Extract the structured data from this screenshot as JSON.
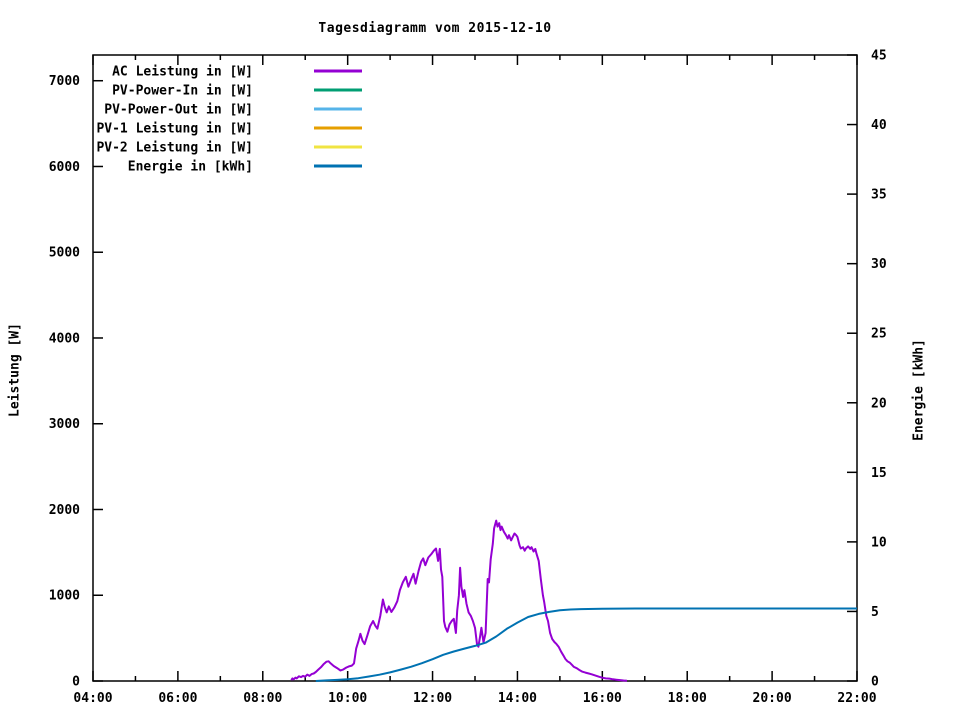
{
  "title": "Tagesdiagramm vom 2015-12-10",
  "axes": {
    "x": {
      "major_ticks": [
        {
          "label": "04:00",
          "hour": 4
        },
        {
          "label": "06:00",
          "hour": 6
        },
        {
          "label": "08:00",
          "hour": 8
        },
        {
          "label": "10:00",
          "hour": 10
        },
        {
          "label": "12:00",
          "hour": 12
        },
        {
          "label": "14:00",
          "hour": 14
        },
        {
          "label": "16:00",
          "hour": 16
        },
        {
          "label": "18:00",
          "hour": 18
        },
        {
          "label": "20:00",
          "hour": 20
        },
        {
          "label": "22:00",
          "hour": 22
        }
      ],
      "minor_tick_hours": [
        5,
        7,
        9,
        11,
        13,
        15,
        17,
        19,
        21
      ]
    },
    "y_left": {
      "label": "Leistung [W]",
      "ticks": [
        {
          "label": "0",
          "value": 0
        },
        {
          "label": "1000",
          "value": 1000
        },
        {
          "label": "2000",
          "value": 2000
        },
        {
          "label": "3000",
          "value": 3000
        },
        {
          "label": "4000",
          "value": 4000
        },
        {
          "label": "5000",
          "value": 5000
        },
        {
          "label": "6000",
          "value": 6000
        },
        {
          "label": "7000",
          "value": 7000
        }
      ]
    },
    "y_right": {
      "label": "Energie [kWh]",
      "ticks": [
        {
          "label": "0",
          "value": 0
        },
        {
          "label": "5",
          "value": 5
        },
        {
          "label": "10",
          "value": 10
        },
        {
          "label": "15",
          "value": 15
        },
        {
          "label": "20",
          "value": 20
        },
        {
          "label": "25",
          "value": 25
        },
        {
          "label": "30",
          "value": 30
        },
        {
          "label": "35",
          "value": 35
        },
        {
          "label": "40",
          "value": 40
        },
        {
          "label": "45",
          "value": 45
        }
      ]
    }
  },
  "legend": [
    {
      "label": "AC Leistung in [W]",
      "color": "#9400d3"
    },
    {
      "label": "PV-Power-In in [W]",
      "color": "#009e73"
    },
    {
      "label": "PV-Power-Out in [W]",
      "color": "#56b4e9"
    },
    {
      "label": "PV-1 Leistung in [W]",
      "color": "#e69f00"
    },
    {
      "label": "PV-2 Leistung in [W]",
      "color": "#f0e442"
    },
    {
      "label": "Energie in [kWh]",
      "color": "#0072b2"
    }
  ],
  "chart_data": {
    "type": "line",
    "title": "Tagesdiagramm vom 2015-12-10",
    "xlabel": "",
    "x_axis": "time of day (HH:MM)",
    "x_range": [
      4,
      22
    ],
    "ylabel_left": "Leistung [W]",
    "y_left_range": [
      0,
      7300
    ],
    "ylabel_right": "Energie [kWh]",
    "y_right_range": [
      0,
      45
    ],
    "grid": false,
    "legend_position": "inside top-left",
    "series": [
      {
        "name": "AC Leistung in [W]",
        "color": "#9400d3",
        "axis": "left",
        "points": [
          [
            8.67,
            10
          ],
          [
            8.7,
            30
          ],
          [
            8.73,
            20
          ],
          [
            8.77,
            40
          ],
          [
            8.8,
            30
          ],
          [
            8.85,
            55
          ],
          [
            8.9,
            45
          ],
          [
            8.95,
            60
          ],
          [
            9.0,
            50
          ],
          [
            9.05,
            75
          ],
          [
            9.1,
            60
          ],
          [
            9.15,
            80
          ],
          [
            9.2,
            88
          ],
          [
            9.25,
            105
          ],
          [
            9.3,
            130
          ],
          [
            9.37,
            160
          ],
          [
            9.43,
            195
          ],
          [
            9.5,
            225
          ],
          [
            9.55,
            230
          ],
          [
            9.6,
            205
          ],
          [
            9.67,
            175
          ],
          [
            9.75,
            150
          ],
          [
            9.83,
            122
          ],
          [
            9.9,
            135
          ],
          [
            9.97,
            158
          ],
          [
            10.03,
            170
          ],
          [
            10.1,
            180
          ],
          [
            10.15,
            205
          ],
          [
            10.2,
            380
          ],
          [
            10.25,
            460
          ],
          [
            10.3,
            550
          ],
          [
            10.35,
            470
          ],
          [
            10.4,
            430
          ],
          [
            10.47,
            540
          ],
          [
            10.53,
            640
          ],
          [
            10.6,
            700
          ],
          [
            10.65,
            645
          ],
          [
            10.7,
            610
          ],
          [
            10.77,
            760
          ],
          [
            10.83,
            950
          ],
          [
            10.87,
            870
          ],
          [
            10.92,
            800
          ],
          [
            10.97,
            870
          ],
          [
            11.03,
            805
          ],
          [
            11.1,
            860
          ],
          [
            11.17,
            930
          ],
          [
            11.23,
            1060
          ],
          [
            11.3,
            1150
          ],
          [
            11.37,
            1215
          ],
          [
            11.43,
            1100
          ],
          [
            11.5,
            1190
          ],
          [
            11.55,
            1250
          ],
          [
            11.6,
            1135
          ],
          [
            11.67,
            1280
          ],
          [
            11.73,
            1390
          ],
          [
            11.78,
            1430
          ],
          [
            11.83,
            1350
          ],
          [
            11.9,
            1440
          ],
          [
            11.97,
            1480
          ],
          [
            12.03,
            1520
          ],
          [
            12.08,
            1545
          ],
          [
            12.13,
            1400
          ],
          [
            12.17,
            1540
          ],
          [
            12.2,
            1300
          ],
          [
            12.23,
            1215
          ],
          [
            12.27,
            700
          ],
          [
            12.3,
            630
          ],
          [
            12.35,
            575
          ],
          [
            12.4,
            660
          ],
          [
            12.45,
            700
          ],
          [
            12.5,
            725
          ],
          [
            12.55,
            560
          ],
          [
            12.58,
            820
          ],
          [
            12.62,
            1000
          ],
          [
            12.65,
            1320
          ],
          [
            12.68,
            1100
          ],
          [
            12.72,
            980
          ],
          [
            12.75,
            1060
          ],
          [
            12.8,
            900
          ],
          [
            12.85,
            800
          ],
          [
            12.9,
            760
          ],
          [
            12.95,
            700
          ],
          [
            13.0,
            620
          ],
          [
            13.05,
            420
          ],
          [
            13.08,
            400
          ],
          [
            13.12,
            520
          ],
          [
            13.15,
            620
          ],
          [
            13.2,
            450
          ],
          [
            13.25,
            560
          ],
          [
            13.3,
            1190
          ],
          [
            13.33,
            1150
          ],
          [
            13.37,
            1420
          ],
          [
            13.42,
            1600
          ],
          [
            13.45,
            1780
          ],
          [
            13.5,
            1870
          ],
          [
            13.53,
            1800
          ],
          [
            13.57,
            1840
          ],
          [
            13.6,
            1760
          ],
          [
            13.63,
            1800
          ],
          [
            13.68,
            1740
          ],
          [
            13.73,
            1700
          ],
          [
            13.77,
            1660
          ],
          [
            13.8,
            1700
          ],
          [
            13.85,
            1640
          ],
          [
            13.9,
            1690
          ],
          [
            13.93,
            1720
          ],
          [
            13.97,
            1700
          ],
          [
            14.0,
            1680
          ],
          [
            14.05,
            1580
          ],
          [
            14.08,
            1545
          ],
          [
            14.13,
            1560
          ],
          [
            14.17,
            1520
          ],
          [
            14.2,
            1545
          ],
          [
            14.25,
            1570
          ],
          [
            14.3,
            1540
          ],
          [
            14.33,
            1560
          ],
          [
            14.38,
            1510
          ],
          [
            14.42,
            1540
          ],
          [
            14.45,
            1485
          ],
          [
            14.5,
            1400
          ],
          [
            14.55,
            1190
          ],
          [
            14.6,
            1000
          ],
          [
            14.63,
            920
          ],
          [
            14.68,
            760
          ],
          [
            14.72,
            700
          ],
          [
            14.77,
            560
          ],
          [
            14.82,
            490
          ],
          [
            14.87,
            455
          ],
          [
            14.92,
            430
          ],
          [
            14.97,
            400
          ],
          [
            15.03,
            340
          ],
          [
            15.08,
            300
          ],
          [
            15.13,
            257
          ],
          [
            15.18,
            230
          ],
          [
            15.23,
            215
          ],
          [
            15.28,
            190
          ],
          [
            15.33,
            165
          ],
          [
            15.4,
            148
          ],
          [
            15.47,
            125
          ],
          [
            15.53,
            108
          ],
          [
            15.6,
            98
          ],
          [
            15.68,
            88
          ],
          [
            15.75,
            78
          ],
          [
            15.83,
            65
          ],
          [
            15.92,
            50
          ],
          [
            16.0,
            38
          ],
          [
            16.08,
            30
          ],
          [
            16.17,
            28
          ],
          [
            16.25,
            20
          ],
          [
            16.33,
            15
          ],
          [
            16.42,
            10
          ],
          [
            16.5,
            6
          ],
          [
            16.58,
            2
          ]
        ]
      },
      {
        "name": "PV-Power-In in [W]",
        "color": "#009e73",
        "axis": "left",
        "points": [],
        "note": "no visible data"
      },
      {
        "name": "PV-Power-Out in [W]",
        "color": "#56b4e9",
        "axis": "left",
        "points": [],
        "note": "no visible data"
      },
      {
        "name": "PV-1 Leistung in [W]",
        "color": "#e69f00",
        "axis": "left",
        "points": [],
        "note": "no visible data"
      },
      {
        "name": "PV-2 Leistung in [W]",
        "color": "#f0e442",
        "axis": "left",
        "points": [],
        "note": "no visible data"
      },
      {
        "name": "Energie in [kWh]",
        "color": "#0072b2",
        "axis": "right",
        "points": [
          [
            9.25,
            0
          ],
          [
            9.5,
            0.04
          ],
          [
            9.75,
            0.08
          ],
          [
            10.0,
            0.13
          ],
          [
            10.25,
            0.2
          ],
          [
            10.5,
            0.32
          ],
          [
            10.75,
            0.45
          ],
          [
            11.0,
            0.62
          ],
          [
            11.25,
            0.82
          ],
          [
            11.5,
            1.03
          ],
          [
            11.75,
            1.28
          ],
          [
            12.0,
            1.57
          ],
          [
            12.25,
            1.88
          ],
          [
            12.5,
            2.12
          ],
          [
            12.75,
            2.33
          ],
          [
            13.0,
            2.52
          ],
          [
            13.25,
            2.75
          ],
          [
            13.5,
            3.2
          ],
          [
            13.75,
            3.75
          ],
          [
            14.0,
            4.2
          ],
          [
            14.25,
            4.6
          ],
          [
            14.5,
            4.82
          ],
          [
            14.75,
            4.97
          ],
          [
            15.0,
            5.08
          ],
          [
            15.25,
            5.14
          ],
          [
            15.5,
            5.17
          ],
          [
            16.0,
            5.2
          ],
          [
            17.0,
            5.21
          ],
          [
            18.0,
            5.21
          ],
          [
            19.0,
            5.21
          ],
          [
            20.0,
            5.21
          ],
          [
            21.0,
            5.21
          ],
          [
            22.0,
            5.21
          ]
        ]
      }
    ]
  }
}
